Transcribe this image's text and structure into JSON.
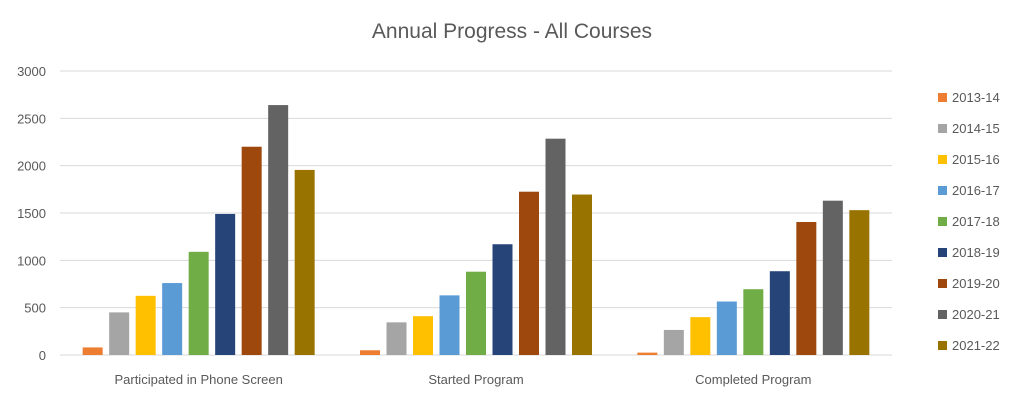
{
  "chart_data": {
    "type": "bar",
    "title": "Annual Progress - All Courses",
    "xlabel": "",
    "ylabel": "",
    "ylim": [
      0,
      3000
    ],
    "yticks": [
      0,
      500,
      1000,
      1500,
      2000,
      2500,
      3000
    ],
    "grid": true,
    "legend_position": "right",
    "categories": [
      "Participated in Phone Screen",
      "Started Program",
      "Completed Program"
    ],
    "series": [
      {
        "name": "2013-14",
        "color": "#ED7D31",
        "values": [
          80,
          50,
          25
        ]
      },
      {
        "name": "2014-15",
        "color": "#A5A5A5",
        "values": [
          450,
          345,
          265
        ]
      },
      {
        "name": "2015-16",
        "color": "#FFC000",
        "values": [
          625,
          410,
          400
        ]
      },
      {
        "name": "2016-17",
        "color": "#5B9BD5",
        "values": [
          760,
          630,
          565
        ]
      },
      {
        "name": "2017-18",
        "color": "#70AD47",
        "values": [
          1090,
          880,
          695
        ]
      },
      {
        "name": "2018-19",
        "color": "#264478",
        "values": [
          1490,
          1170,
          885
        ]
      },
      {
        "name": "2019-20",
        "color": "#9E480E",
        "values": [
          2200,
          1725,
          1405
        ]
      },
      {
        "name": "2020-21",
        "color": "#636363",
        "values": [
          2640,
          2285,
          1630
        ]
      },
      {
        "name": "2021-22",
        "color": "#997300",
        "values": [
          1955,
          1695,
          1530
        ]
      }
    ]
  }
}
